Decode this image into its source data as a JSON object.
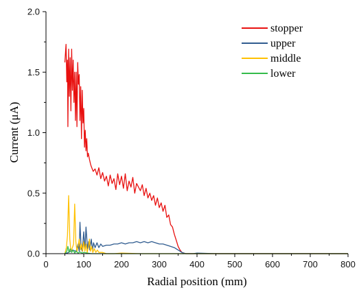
{
  "chart_data": {
    "type": "line",
    "xlabel": "Radial position (mm)",
    "ylabel": "Current (μA)",
    "xlim": [
      0,
      800
    ],
    "ylim": [
      0,
      2.0
    ],
    "xticks": [
      "0",
      "100",
      "200",
      "300",
      "400",
      "500",
      "600",
      "700",
      "800"
    ],
    "yticks": [
      "0.0",
      "0.5",
      "1.0",
      "1.5",
      "2.0"
    ],
    "grid": false,
    "legend_position": "top-right",
    "series": [
      {
        "name": "stopper",
        "color": "#e8100f",
        "x": [
          50,
          53,
          55,
          57,
          58,
          60,
          62,
          64,
          66,
          68,
          70,
          72,
          74,
          76,
          78,
          80,
          82,
          84,
          86,
          88,
          90,
          92,
          94,
          96,
          98,
          100,
          102,
          104,
          106,
          108,
          110,
          112,
          115,
          118,
          120,
          125,
          130,
          135,
          140,
          145,
          150,
          155,
          160,
          165,
          170,
          175,
          180,
          185,
          190,
          195,
          200,
          205,
          210,
          215,
          220,
          225,
          230,
          235,
          240,
          245,
          250,
          255,
          260,
          265,
          270,
          275,
          280,
          285,
          290,
          295,
          300,
          305,
          310,
          315,
          320,
          325,
          330,
          335,
          340,
          345,
          350,
          355,
          360,
          365,
          370,
          380,
          390,
          400,
          450,
          500,
          550,
          600,
          650,
          700,
          750,
          800
        ],
        "y": [
          1.58,
          1.73,
          1.42,
          1.6,
          1.05,
          1.69,
          1.3,
          1.62,
          1.18,
          1.69,
          1.35,
          1.6,
          1.25,
          1.5,
          1.1,
          1.5,
          1.05,
          1.58,
          1.4,
          1.48,
          1.1,
          1.38,
          0.95,
          1.35,
          1.08,
          1.2,
          0.88,
          1.02,
          0.85,
          0.95,
          0.8,
          0.83,
          0.78,
          0.74,
          0.72,
          0.68,
          0.7,
          0.65,
          0.71,
          0.62,
          0.67,
          0.6,
          0.64,
          0.56,
          0.65,
          0.58,
          0.62,
          0.53,
          0.66,
          0.57,
          0.64,
          0.54,
          0.66,
          0.52,
          0.6,
          0.55,
          0.63,
          0.5,
          0.58,
          0.55,
          0.52,
          0.57,
          0.48,
          0.54,
          0.46,
          0.5,
          0.44,
          0.48,
          0.4,
          0.46,
          0.38,
          0.42,
          0.35,
          0.4,
          0.3,
          0.32,
          0.24,
          0.22,
          0.16,
          0.11,
          0.06,
          0.03,
          0.01,
          0.005,
          0,
          0,
          0,
          0,
          0,
          0,
          0,
          0,
          0,
          0,
          0,
          0
        ]
      },
      {
        "name": "upper",
        "color": "#2f5b8f",
        "x": [
          50,
          60,
          70,
          80,
          85,
          88,
          90,
          93,
          96,
          100,
          103,
          106,
          110,
          113,
          116,
          120,
          123,
          126,
          130,
          135,
          140,
          145,
          150,
          160,
          170,
          180,
          190,
          200,
          210,
          220,
          230,
          240,
          250,
          260,
          270,
          280,
          290,
          300,
          310,
          320,
          330,
          340,
          350,
          360,
          370,
          380,
          390,
          400,
          450,
          500,
          600,
          800
        ],
        "y": [
          0,
          0.01,
          0.03,
          0.02,
          0.08,
          0.02,
          0.26,
          0.05,
          0.02,
          0.18,
          0.03,
          0.22,
          0.04,
          0.1,
          0.03,
          0.12,
          0.03,
          0.09,
          0.05,
          0.09,
          0.05,
          0.08,
          0.06,
          0.07,
          0.07,
          0.08,
          0.08,
          0.09,
          0.08,
          0.09,
          0.09,
          0.1,
          0.09,
          0.1,
          0.09,
          0.1,
          0.09,
          0.08,
          0.08,
          0.07,
          0.06,
          0.05,
          0.03,
          0.01,
          0,
          0,
          0,
          0.005,
          0,
          0,
          0,
          0
        ]
      },
      {
        "name": "middle",
        "color": "#ffc000",
        "x": [
          50,
          54,
          57,
          60,
          63,
          66,
          70,
          73,
          76,
          79,
          82,
          85,
          88,
          91,
          94,
          97,
          100,
          103,
          106,
          109,
          112,
          115,
          118,
          121,
          124,
          128,
          132,
          136,
          140,
          145,
          150,
          160,
          180,
          200,
          250,
          300,
          400,
          500,
          600,
          800
        ],
        "y": [
          0,
          0.05,
          0.15,
          0.48,
          0.12,
          0.02,
          0.05,
          0.08,
          0.41,
          0.1,
          0.02,
          0.06,
          0.12,
          0.03,
          0.08,
          0.02,
          0.1,
          0.02,
          0.08,
          0.01,
          0.05,
          0.12,
          0.02,
          0.06,
          0.01,
          0.04,
          0.01,
          0.03,
          0.01,
          0.01,
          0.01,
          0,
          0,
          0.005,
          0,
          0,
          0,
          0,
          0,
          0
        ]
      },
      {
        "name": "lower",
        "color": "#33bb4a",
        "x": [
          50,
          55,
          58,
          61,
          64,
          68,
          72,
          76,
          80,
          85,
          90,
          95,
          100,
          110,
          120,
          150,
          200,
          300,
          400,
          500,
          600,
          800
        ],
        "y": [
          0,
          0.02,
          0.06,
          0.01,
          0.04,
          0.01,
          0.03,
          0.005,
          0.02,
          0.005,
          0.015,
          0.005,
          0.01,
          0.005,
          0,
          0,
          0,
          0,
          0,
          0,
          0,
          0
        ]
      }
    ]
  }
}
